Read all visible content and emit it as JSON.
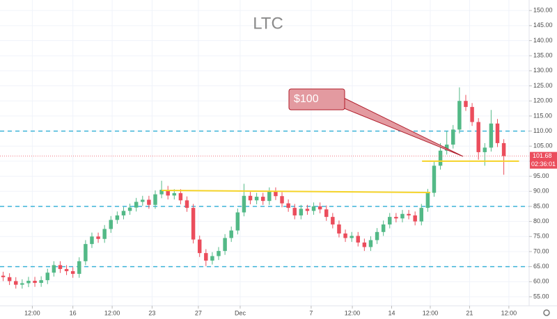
{
  "chart_data": {
    "type": "candlestick",
    "title": "LTC",
    "open": [
      62.0,
      61.5,
      60.2,
      59.0,
      59.5,
      60.3,
      59.6,
      60.5,
      63.0,
      65.5,
      64.2,
      63.5,
      62.6,
      66.8,
      72.5,
      75.0,
      74.2,
      77.5,
      80.5,
      82.0,
      83.5,
      84.6,
      86.5,
      87.2,
      85.5,
      89.0,
      90.5,
      88.6,
      89.4,
      87.0,
      84.5,
      74.0,
      69.5,
      67.0,
      68.5,
      70.2,
      74.5,
      77.0,
      83.0,
      88.5,
      87.0,
      88.2,
      86.8,
      90.0,
      88.4,
      86.0,
      84.5,
      82.0,
      84.2,
      83.5,
      85.0,
      84.0,
      81.5,
      79.0,
      76.0,
      74.5,
      75.2,
      73.0,
      71.5,
      73.8,
      76.5,
      79.0,
      81.5,
      81.0,
      82.5,
      82.0,
      80.0,
      84.5,
      89.5,
      98.5,
      103.5,
      105.5,
      110.5,
      120.0,
      118.0,
      113.0,
      103.0,
      104.5,
      112.5,
      106.0
    ],
    "high": [
      63.3,
      62.8,
      61.5,
      60.8,
      61.6,
      61.6,
      61.8,
      64.3,
      66.8,
      66.8,
      65.5,
      64.8,
      68.1,
      73.8,
      76.3,
      76.3,
      78.8,
      81.8,
      83.3,
      84.8,
      85.9,
      87.8,
      88.5,
      88.5,
      90.3,
      93.5,
      91.8,
      90.7,
      90.7,
      88.3,
      85.8,
      75.3,
      70.8,
      69.8,
      71.5,
      75.8,
      78.3,
      84.3,
      92.5,
      89.8,
      89.5,
      89.5,
      91.3,
      91.3,
      89.7,
      87.3,
      85.8,
      85.5,
      85.5,
      86.3,
      86.3,
      85.3,
      82.8,
      80.3,
      77.3,
      76.5,
      76.5,
      74.3,
      75.1,
      77.8,
      80.3,
      82.8,
      82.8,
      83.8,
      83.8,
      83.3,
      85.8,
      90.8,
      99.8,
      106.0,
      110.0,
      112.0,
      124.5,
      122.0,
      119.3,
      114.3,
      106.0,
      117.0,
      114.0,
      107.3
    ],
    "low": [
      60.2,
      58.9,
      57.7,
      57.7,
      58.2,
      58.3,
      58.3,
      59.2,
      61.7,
      62.9,
      62.2,
      61.3,
      61.3,
      65.5,
      71.2,
      72.9,
      72.9,
      76.2,
      79.2,
      80.7,
      82.2,
      83.3,
      85.2,
      84.2,
      84.2,
      87.7,
      87.3,
      87.3,
      85.7,
      83.2,
      72.7,
      68.2,
      65.2,
      65.7,
      67.2,
      68.9,
      73.2,
      75.7,
      81.7,
      85.7,
      85.7,
      85.5,
      85.5,
      87.1,
      84.7,
      83.2,
      80.7,
      80.7,
      82.2,
      82.2,
      82.7,
      80.2,
      77.7,
      74.7,
      73.2,
      73.2,
      71.7,
      70.2,
      70.2,
      72.5,
      75.2,
      77.7,
      79.7,
      79.7,
      80.7,
      78.7,
      78.7,
      83.2,
      88.2,
      97.2,
      102.2,
      104.2,
      109.2,
      116.7,
      111.7,
      100.5,
      98.5,
      103.2,
      104.7,
      95.5
    ],
    "close": [
      61.5,
      60.2,
      59.0,
      59.5,
      60.3,
      59.6,
      60.5,
      63.0,
      65.5,
      64.2,
      63.5,
      62.6,
      66.8,
      72.5,
      75.0,
      74.2,
      77.5,
      80.5,
      82.0,
      83.5,
      84.6,
      86.5,
      87.2,
      85.5,
      89.0,
      90.5,
      88.6,
      89.4,
      87.0,
      84.5,
      74.0,
      69.5,
      67.0,
      68.5,
      70.2,
      74.5,
      77.0,
      83.0,
      88.5,
      87.0,
      88.2,
      86.8,
      90.0,
      88.4,
      86.0,
      84.5,
      82.0,
      84.2,
      83.5,
      85.0,
      84.0,
      81.5,
      79.0,
      76.0,
      74.5,
      75.2,
      73.0,
      71.5,
      73.8,
      76.5,
      79.0,
      81.5,
      81.0,
      82.5,
      82.0,
      80.0,
      84.5,
      89.5,
      98.5,
      103.5,
      105.5,
      110.5,
      120.0,
      118.0,
      113.0,
      103.0,
      104.5,
      112.5,
      106.0,
      101.68
    ],
    "up_color": "#53b987",
    "down_color": "#eb4d5c",
    "xlim": [
      -0.5,
      83
    ],
    "xticks": [
      {
        "value": 4.6,
        "label": "12:00"
      },
      {
        "value": 11,
        "label": "16"
      },
      {
        "value": 17.2,
        "label": "12:00"
      },
      {
        "value": 23.5,
        "label": "23"
      },
      {
        "value": 30.8,
        "label": "27"
      },
      {
        "value": 37.4,
        "label": "Dec"
      },
      {
        "value": 48.6,
        "label": "7"
      },
      {
        "value": 55.1,
        "label": "12:00"
      },
      {
        "value": 61.3,
        "label": "14"
      },
      {
        "value": 67.4,
        "label": "12:00"
      },
      {
        "value": 73.6,
        "label": "21"
      },
      {
        "value": 79.8,
        "label": "12:00"
      }
    ],
    "ylim": [
      52,
      153.5
    ],
    "yticks": [
      {
        "value": 55,
        "label": "55.00"
      },
      {
        "value": 60,
        "label": "60.00"
      },
      {
        "value": 65,
        "label": "65.00"
      },
      {
        "value": 70,
        "label": "70.00"
      },
      {
        "value": 75,
        "label": "75.00"
      },
      {
        "value": 80,
        "label": "80.00"
      },
      {
        "value": 85,
        "label": "85.00"
      },
      {
        "value": 90,
        "label": "90.00"
      },
      {
        "value": 95,
        "label": "95.00"
      },
      {
        "value": 100,
        "label": "100.00"
      },
      {
        "value": 105,
        "label": "105.00"
      },
      {
        "value": 110,
        "label": "110.00"
      },
      {
        "value": 115,
        "label": "115.00"
      },
      {
        "value": 120,
        "label": "120.00"
      },
      {
        "value": 125,
        "label": "125.00"
      },
      {
        "value": 130,
        "label": "130.00"
      },
      {
        "value": 135,
        "label": "135.00"
      },
      {
        "value": 140,
        "label": "140.00"
      },
      {
        "value": 145,
        "label": "145.00"
      },
      {
        "value": 150,
        "label": "150.00"
      }
    ],
    "grid": true,
    "levels": [
      {
        "value": 110,
        "color": "#3bb3d8"
      },
      {
        "value": 85,
        "color": "#3bb3d8"
      },
      {
        "value": 65,
        "color": "#3bb3d8"
      }
    ],
    "trendlines": [
      {
        "x": [
          25,
          67.4
        ],
        "y": [
          90.3,
          89.6
        ],
        "color": "#f5d327"
      },
      {
        "x": [
          66.1,
          81.4
        ],
        "y": [
          100,
          100
        ],
        "color": "#f5d327"
      }
    ],
    "callout": "$100",
    "last_price": 101.68,
    "countdown": "02:36:01"
  }
}
